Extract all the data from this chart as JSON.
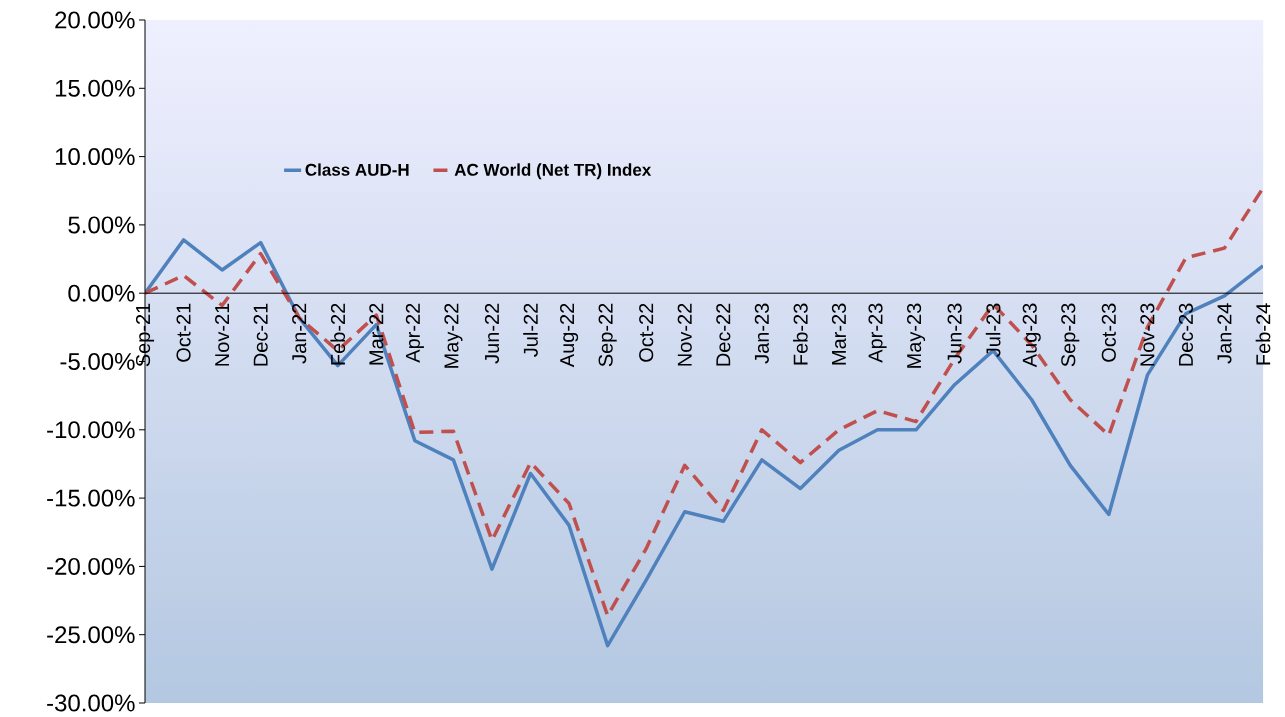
{
  "chart_data": {
    "type": "line",
    "categories": [
      "Sep-21",
      "Oct-21",
      "Nov-21",
      "Dec-21",
      "Jan-22",
      "Feb-22",
      "Mar-22",
      "Apr-22",
      "May-22",
      "Jun-22",
      "Jul-22",
      "Aug-22",
      "Sep-22",
      "Oct-22",
      "Nov-22",
      "Dec-22",
      "Jan-23",
      "Feb-23",
      "Mar-23",
      "Apr-23",
      "May-23",
      "Jun-23",
      "Jul-23",
      "Aug-23",
      "Sep-23",
      "Oct-23",
      "Nov-23",
      "Dec-23",
      "Jan-24",
      "Feb-24"
    ],
    "series": [
      {
        "name": "Class AUD-H",
        "color": "#4f81bd",
        "line_style": "solid",
        "values": [
          0,
          3.9,
          1.7,
          3.7,
          -1.8,
          -5.3,
          -2.3,
          -10.8,
          -12.2,
          -20.2,
          -13.2,
          -17.0,
          -25.8,
          -21.0,
          -16.0,
          -16.7,
          -12.2,
          -14.3,
          -11.5,
          -10.0,
          -10.0,
          -6.7,
          -4.2,
          -7.8,
          -12.6,
          -16.2,
          -6.0,
          -1.5,
          -0.2,
          2.0
        ]
      },
      {
        "name": "AC World (Net TR) Index",
        "color": "#c0504d",
        "line_style": "dashed",
        "values": [
          0,
          1.3,
          -0.9,
          2.9,
          -1.8,
          -4.2,
          -1.6,
          -10.2,
          -10.1,
          -18.1,
          -12.4,
          -15.4,
          -23.6,
          -18.7,
          -12.6,
          -15.9,
          -10.0,
          -12.4,
          -10.0,
          -8.6,
          -9.4,
          -4.8,
          -0.8,
          -3.8,
          -7.8,
          -10.4,
          -2.5,
          2.6,
          3.3,
          7.7
        ]
      }
    ],
    "ylim": [
      -30,
      20
    ],
    "yticks": [
      {
        "value": -30,
        "label": "-30.00%"
      },
      {
        "value": -25,
        "label": "-25.00%"
      },
      {
        "value": -20,
        "label": "-20.00%"
      },
      {
        "value": -15,
        "label": "-15.00%"
      },
      {
        "value": -10,
        "label": "-10.00%"
      },
      {
        "value": -5,
        "label": "-5.00%"
      },
      {
        "value": 0,
        "label": "0.00%"
      },
      {
        "value": 5,
        "label": "5.00%"
      },
      {
        "value": 10,
        "label": "10.00%"
      },
      {
        "value": 15,
        "label": "15.00%"
      },
      {
        "value": 20,
        "label": "20.00%"
      }
    ],
    "grid": false,
    "legend": "top",
    "marker": "none"
  }
}
